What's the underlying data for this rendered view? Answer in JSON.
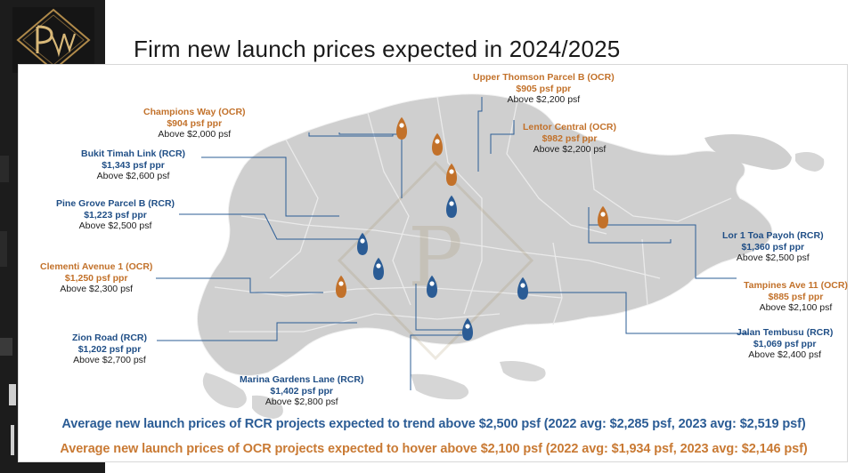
{
  "title": "Firm new launch prices expected in 2024/2025",
  "colors": {
    "rcr": "#1f4e86",
    "ocr": "#c2712a",
    "land": "#cfcfcf"
  },
  "projects": [
    {
      "name": "Upper Thomson Parcel B (OCR)",
      "ppr": "$905 psf ppr",
      "psf": "Above $2,200 psf",
      "segment": "ocr"
    },
    {
      "name": "Champions Way (OCR)",
      "ppr": "$904 psf ppr",
      "psf": "Above $2,000 psf",
      "segment": "ocr"
    },
    {
      "name": "Lentor Central (OCR)",
      "ppr": "$982 psf ppr",
      "psf": "Above $2,200 psf",
      "segment": "ocr"
    },
    {
      "name": "Bukit Timah Link (RCR)",
      "ppr": "$1,343 psf ppr",
      "psf": "Above $2,600 psf",
      "segment": "rcr"
    },
    {
      "name": "Pine Grove Parcel B (RCR)",
      "ppr": "$1,223 psf ppr",
      "psf": "Above $2,500 psf",
      "segment": "rcr"
    },
    {
      "name": "Lor 1 Toa Payoh (RCR)",
      "ppr": "$1,360 psf ppr",
      "psf": "Above $2,500 psf",
      "segment": "rcr"
    },
    {
      "name": "Clementi Avenue 1 (OCR)",
      "ppr": "$1,250 psf ppr",
      "psf": "Above $2,300 psf",
      "segment": "ocr"
    },
    {
      "name": "Tampines Ave 11 (OCR)",
      "ppr": "$885 psf ppr",
      "psf": "Above $2,100 psf",
      "segment": "ocr"
    },
    {
      "name": "Zion Road (RCR)",
      "ppr": "$1,202 psf ppr",
      "psf": "Above $2,700 psf",
      "segment": "rcr"
    },
    {
      "name": "Jalan Tembusu (RCR)",
      "ppr": "$1,069 psf ppr",
      "psf": "Above $2,400 psf",
      "segment": "rcr"
    },
    {
      "name": "Marina Gardens Lane (RCR)",
      "ppr": "$1,402 psf ppr",
      "psf": "Above $2,800 psf",
      "segment": "rcr"
    }
  ],
  "summary": {
    "rcr": "Average new launch prices of RCR projects expected to trend above $2,500 psf (2022 avg: $2,285 psf, 2023 avg: $2,519 psf)",
    "ocr": "Average new launch prices of OCR projects expected to hover above $2,100 psf (2022 avg: $1,934 psf, 2023 avg: $2,146 psf)"
  }
}
